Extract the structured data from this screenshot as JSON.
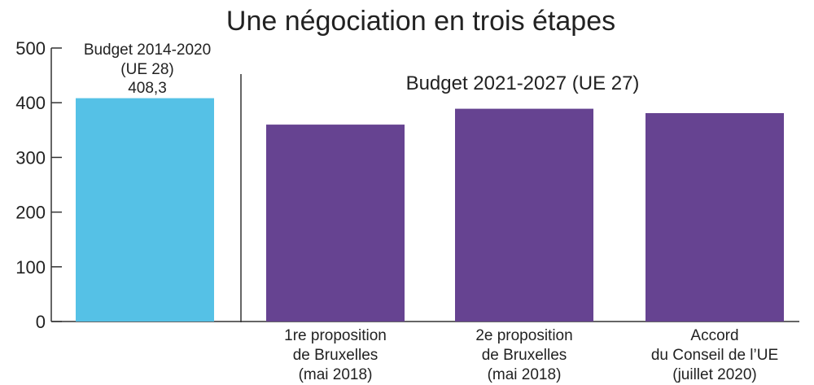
{
  "chart_data": {
    "type": "bar",
    "title": "Une négociation en trois étapes",
    "ylim": [
      0,
      500
    ],
    "yticks": [
      "0",
      "100",
      "200",
      "300",
      "400",
      "500"
    ],
    "ytick_values": [
      0,
      100,
      200,
      300,
      400,
      500
    ],
    "grid": false,
    "categories": [
      {
        "lines": [
          "",
          "",
          ""
        ]
      },
      {
        "lines": [
          "1re proposition",
          "de Bruxelles",
          "(mai 2018)"
        ]
      },
      {
        "lines": [
          "2e proposition",
          "de Bruxelles",
          "(mai 2018)"
        ]
      },
      {
        "lines": [
          "Accord",
          "du Conseil de l’UE",
          "(juillet 2020)"
        ]
      }
    ],
    "values": [
      408.3,
      360,
      389,
      381
    ],
    "colors": [
      "#55c1e6",
      "#664391",
      "#664391",
      "#664391"
    ],
    "annotations": {
      "first_bar": [
        "Budget 2014-2020",
        "(UE 28)",
        "408,3"
      ],
      "group_label": "Budget 2021-2027 (UE 27)"
    }
  }
}
